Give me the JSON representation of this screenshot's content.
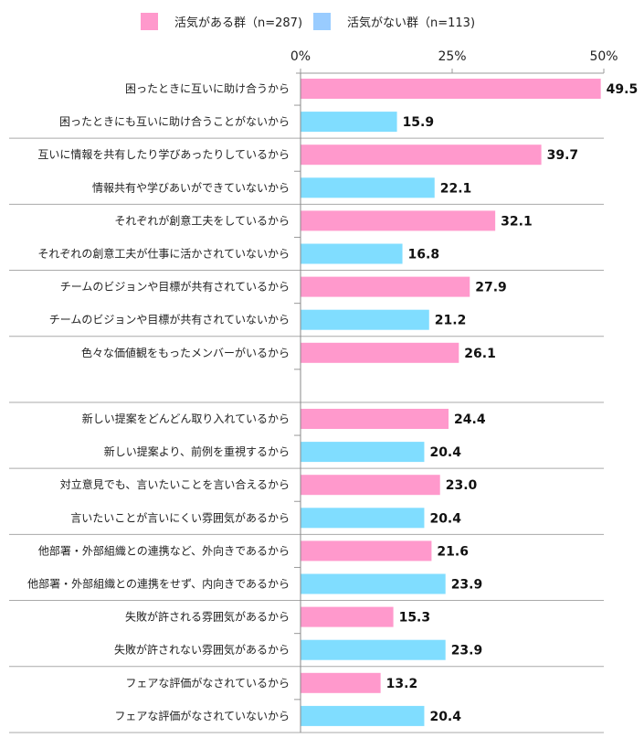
{
  "chart_data": {
    "type": "bar",
    "orientation": "horizontal",
    "xlim": [
      0,
      50
    ],
    "x_ticks": [
      "0%",
      "25%",
      "50%"
    ],
    "x_tick_values": [
      0,
      25,
      50
    ],
    "colors": {
      "active": "#FF99CC",
      "inactive": "#80DDFF",
      "legend_inactive": "#99CCFF"
    },
    "legend": [
      {
        "name": "活気がある群（n=287)",
        "color": "#FF99CC"
      },
      {
        "name": "活気がない群（n=113)",
        "color": "#99CCFF"
      }
    ],
    "legend_placement": "top",
    "bars": [
      {
        "label": "困ったときに互いに助け合うから",
        "value": 49.5,
        "group": "active"
      },
      {
        "label": "困ったときにも互いに助け合うことがないから",
        "value": 15.9,
        "group": "inactive"
      },
      {
        "label": "互いに情報を共有したり学びあったりしているから",
        "value": 39.7,
        "group": "active"
      },
      {
        "label": "情報共有や学びあいができていないから",
        "value": 22.1,
        "group": "inactive"
      },
      {
        "label": "それぞれが創意工夫をしているから",
        "value": 32.1,
        "group": "active"
      },
      {
        "label": "それぞれの創意工夫が仕事に活かされていないから",
        "value": 16.8,
        "group": "inactive"
      },
      {
        "label": "チームのビジョンや目標が共有されているから",
        "value": 27.9,
        "group": "active"
      },
      {
        "label": "チームのビジョンや目標が共有されていないから",
        "value": 21.2,
        "group": "inactive"
      },
      {
        "label": "色々な価値観をもったメンバーがいるから",
        "value": 26.1,
        "group": "active"
      },
      {
        "label": "",
        "value": null,
        "group": "inactive"
      },
      {
        "label": "新しい提案をどんどん取り入れているから",
        "value": 24.4,
        "group": "active"
      },
      {
        "label": "新しい提案より、前例を重視するから",
        "value": 20.4,
        "group": "inactive"
      },
      {
        "label": "対立意見でも、言いたいことを言い合えるから",
        "value": 23.0,
        "group": "active"
      },
      {
        "label": "言いたいことが言いにくい雰囲気があるから",
        "value": 20.4,
        "group": "inactive"
      },
      {
        "label": "他部署・外部組織との連携など、外向きであるから",
        "value": 21.6,
        "group": "active"
      },
      {
        "label": "他部署・外部組織との連携をせず、内向きであるから",
        "value": 23.9,
        "group": "inactive"
      },
      {
        "label": "失敗が許される雰囲気があるから",
        "value": 15.3,
        "group": "active"
      },
      {
        "label": "失敗が許されない雰囲気があるから",
        "value": 23.9,
        "group": "inactive"
      },
      {
        "label": "フェアな評価がなされているから",
        "value": 13.2,
        "group": "active"
      },
      {
        "label": "フェアな評価がなされていないから",
        "value": 20.4,
        "group": "inactive"
      }
    ]
  }
}
